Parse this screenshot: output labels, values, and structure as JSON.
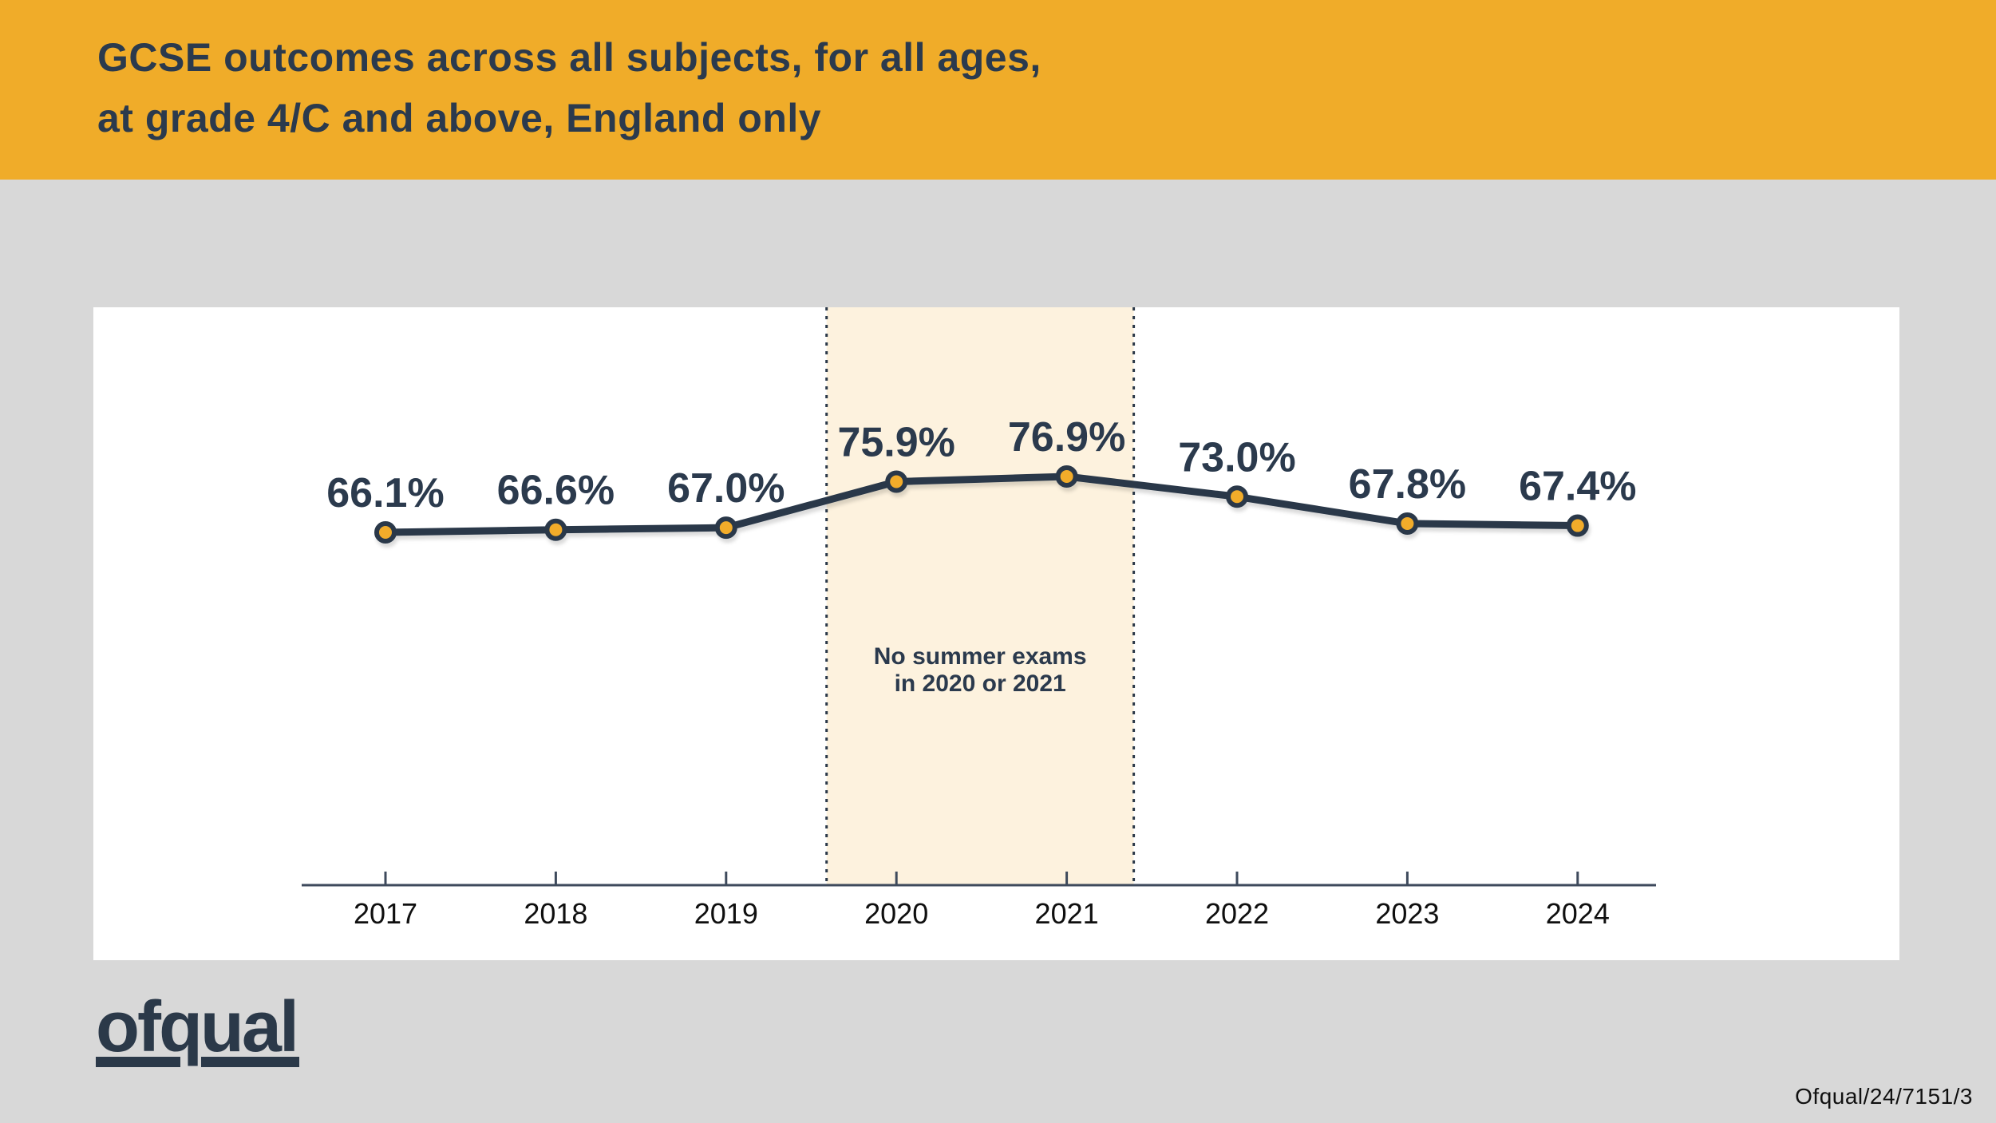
{
  "header": {
    "title_line1": "GCSE outcomes across all subjects, for all ages,",
    "title_line2": "at grade 4/C and above, England only"
  },
  "chart_data": {
    "type": "line",
    "title": "GCSE outcomes across all subjects, for all ages, at grade 4/C and above, England only",
    "categories": [
      "2017",
      "2018",
      "2019",
      "2020",
      "2021",
      "2022",
      "2023",
      "2024"
    ],
    "series": [
      {
        "name": "GCSE outcomes at grade 4/C and above",
        "values": [
          66.1,
          66.6,
          67.0,
          75.9,
          76.9,
          73.0,
          67.8,
          67.4
        ]
      }
    ],
    "value_labels": [
      "66.1%",
      "66.6%",
      "67.0%",
      "75.9%",
      "76.9%",
      "73.0%",
      "67.8%",
      "67.4%"
    ],
    "xlabel": "",
    "ylabel": "",
    "grid": false,
    "legend_position": "none",
    "highlight_region": {
      "from": "2020",
      "to": "2021",
      "label_lines": [
        "No summer exams",
        "in 2020 or 2021"
      ],
      "fill": "#FDF2DE",
      "border_style": "dotted"
    },
    "line_color": "#2B3949",
    "marker_fill": "#F2AC29",
    "marker_stroke": "#2B3949",
    "axis_color": "#3E4A5C",
    "year_label_color": "#0F0F0F",
    "value_label_color": "#2B3A4D"
  },
  "footer": {
    "logo_text": "ofqual",
    "doc_ref": "Ofqual/24/7151/3"
  },
  "colors": {
    "header_bg": "#F0AC29",
    "body_bg": "#D8D8D8",
    "card_bg": "#FFFFFF",
    "navy": "#2B3949",
    "region_cream": "#FDF2DE"
  }
}
